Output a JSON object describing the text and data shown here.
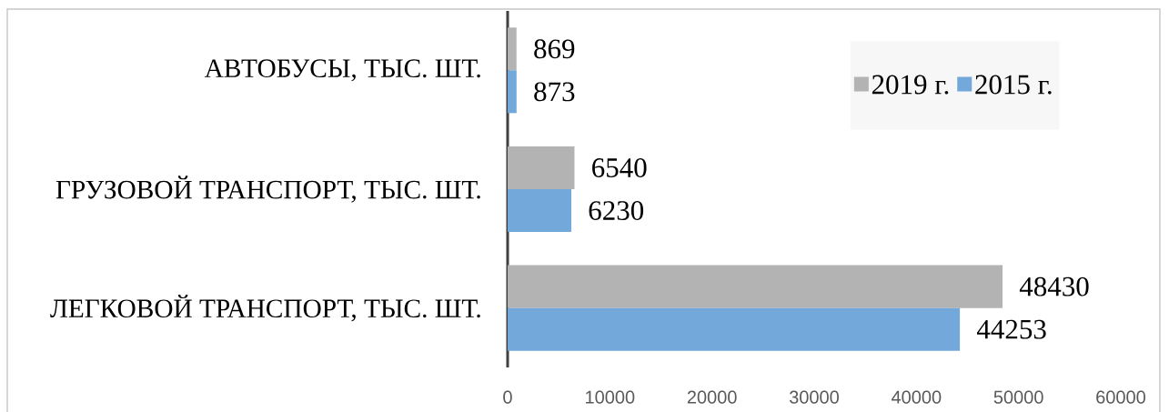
{
  "chart_data": {
    "type": "bar",
    "orientation": "horizontal",
    "categories": [
      "АВТОБУСЫ, ТЫС. ШТ.",
      "ГРУЗОВОЙ ТРАНСПОРТ, ТЫС. ШТ.",
      "ЛЕГКОВОЙ ТРАНСПОРТ, ТЫС. ШТ."
    ],
    "series": [
      {
        "name": "2019 г.",
        "color": "#b3b3b3",
        "values": [
          869,
          6540,
          48430
        ]
      },
      {
        "name": "2015 г.",
        "color": "#72a8da",
        "values": [
          873,
          6230,
          44253
        ]
      }
    ],
    "xlim": [
      0,
      60000
    ],
    "xticks": [
      0,
      10000,
      20000,
      30000,
      40000,
      50000,
      60000
    ],
    "data_labels": true,
    "legend": "top right"
  }
}
